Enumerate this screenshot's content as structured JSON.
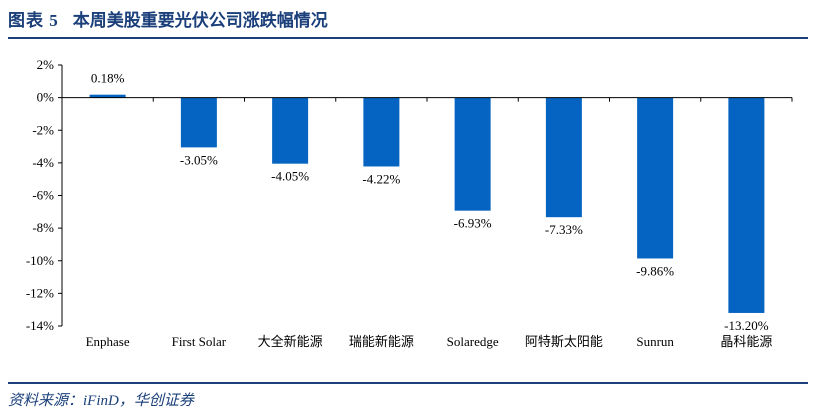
{
  "header": {
    "label": "图表 5",
    "title": "本周美股重要光伏公司涨跌幅情况"
  },
  "source": "资料来源：iFinD，华创证券",
  "colors": {
    "bar": "#0563C1",
    "accent": "#1a3f7a"
  },
  "chart_data": {
    "type": "bar",
    "title": "",
    "xlabel": "",
    "ylabel": "",
    "categories": [
      "Enphase",
      "First Solar",
      "大全新能源",
      "瑞能新能源",
      "Solaredge",
      "阿特斯太阳能",
      "Sunrun",
      "晶科能源"
    ],
    "series": [
      {
        "values": [
          0.18,
          -3.05,
          -4.05,
          -4.22,
          -6.93,
          -7.33,
          -9.86,
          -13.2
        ]
      }
    ],
    "data_labels": [
      "0.18%",
      "-3.05%",
      "-4.05%",
      "-4.22%",
      "-6.93%",
      "-7.33%",
      "-9.86%",
      "-13.20%"
    ],
    "ylim": [
      -14,
      2
    ],
    "yticks": [
      2,
      0,
      -2,
      -4,
      -6,
      -8,
      -10,
      -12,
      -14
    ],
    "ytick_labels": [
      "2%",
      "0%",
      "-2%",
      "-4%",
      "-6%",
      "-8%",
      "-10%",
      "-12%",
      "-14%"
    ],
    "grid": false,
    "legend": "none"
  }
}
